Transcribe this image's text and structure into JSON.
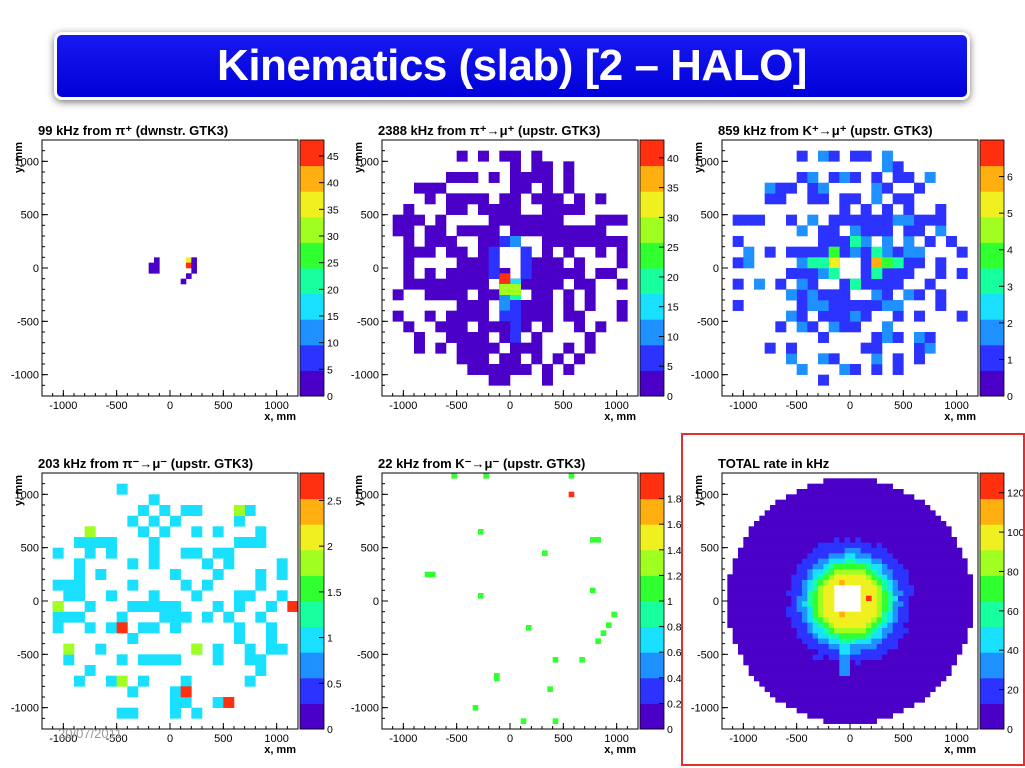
{
  "slide": {
    "title": "Kinematics (slab) [2 – HALO]",
    "date": "20/07/2011"
  },
  "colors": {
    "title_bg": "#0a0ae6",
    "highlight_border": "#e03030",
    "palette": [
      "#4b00c8",
      "#2c33ff",
      "#1f90ff",
      "#19e0ff",
      "#18ffa0",
      "#30ff30",
      "#a0ff20",
      "#f0f020",
      "#ffb010",
      "#ff3010"
    ]
  },
  "chart_data": [
    {
      "type": "heatmap",
      "title": "99 kHz from π⁺ (dwnstr. GTK3)",
      "xlabel": "x, mm",
      "ylabel": "y, mm",
      "xlim": [
        -1200,
        1200
      ],
      "ylim": [
        -1200,
        1200
      ],
      "x_ticks": [
        "-1000",
        "-500",
        "0",
        "500",
        "1000"
      ],
      "y_ticks": [
        "-1000",
        "-500",
        "0",
        "500",
        "1000"
      ],
      "zlim": [
        0,
        48
      ],
      "z_ticks": [
        "0",
        "5",
        "10",
        "15",
        "20",
        "25",
        "30",
        "35",
        "40",
        "45"
      ],
      "bin_size_mm": 50,
      "cells": [
        [
          -200,
          -50,
          4
        ],
        [
          -200,
          0,
          4
        ],
        [
          -150,
          0,
          4
        ],
        [
          -150,
          -50,
          4
        ],
        [
          -150,
          50,
          4
        ],
        [
          150,
          50,
          35
        ],
        [
          150,
          0,
          45
        ],
        [
          200,
          0,
          4
        ],
        [
          200,
          -50,
          4
        ],
        [
          200,
          50,
          4
        ],
        [
          100,
          -150,
          4
        ],
        [
          150,
          -100,
          4
        ]
      ]
    },
    {
      "type": "heatmap",
      "title": "2388 kHz from π⁺→μ⁺ (upstr. GTK3)",
      "xlabel": "x, mm",
      "ylabel": "y, mm",
      "xlim": [
        -1200,
        1200
      ],
      "ylim": [
        -1200,
        1200
      ],
      "x_ticks": [
        "-1000",
        "-500",
        "0",
        "500",
        "1000"
      ],
      "y_ticks": [
        "-1000",
        "-500",
        "0",
        "500",
        "1000"
      ],
      "zlim": [
        0,
        43
      ],
      "z_ticks": [
        "0",
        "5",
        "10",
        "15",
        "20",
        "25",
        "30",
        "35",
        "40"
      ],
      "bin_size_mm": 100,
      "fill": "halo",
      "fill_value": 1,
      "fill_density": 0.55,
      "hole": [
        -150,
        -50,
        50,
        150
      ],
      "cells": [
        [
          -100,
          -200,
          12
        ],
        [
          0,
          -200,
          14
        ],
        [
          -100,
          -300,
          9
        ],
        [
          0,
          -300,
          20
        ],
        [
          -100,
          -400,
          10
        ],
        [
          0,
          -400,
          8
        ],
        [
          -100,
          -500,
          8
        ],
        [
          0,
          -500,
          6
        ],
        [
          0,
          -600,
          6
        ],
        [
          -100,
          -600,
          4
        ],
        [
          -100,
          -150,
          43
        ],
        [
          0,
          -250,
          30
        ],
        [
          -100,
          -250,
          28
        ],
        [
          -200,
          0,
          5
        ],
        [
          100,
          0,
          6
        ],
        [
          100,
          100,
          8
        ],
        [
          -200,
          100,
          7
        ],
        [
          -100,
          200,
          5
        ],
        [
          0,
          200,
          9
        ],
        [
          100,
          -100,
          7
        ],
        [
          -200,
          -100,
          6
        ],
        [
          0,
          -700,
          5
        ],
        [
          0,
          -800,
          4
        ],
        [
          -100,
          -900,
          4
        ]
      ]
    },
    {
      "type": "heatmap",
      "title": "859 kHz from K⁺→μ⁺ (upstr. GTK3)",
      "xlabel": "x, mm",
      "ylabel": "y, mm",
      "xlim": [
        -1200,
        1200
      ],
      "ylim": [
        -1200,
        1200
      ],
      "x_ticks": [
        "-1000",
        "-500",
        "0",
        "500",
        "1000"
      ],
      "y_ticks": [
        "-1000",
        "-500",
        "0",
        "500",
        "1000"
      ],
      "zlim": [
        0,
        7
      ],
      "z_ticks": [
        "0",
        "1",
        "2",
        "3",
        "4",
        "5",
        "6"
      ],
      "bin_size_mm": 100,
      "fill": "halo",
      "fill_value": 1,
      "fill_value_alt": 2,
      "fill_density": 0.45,
      "hole": [
        -100,
        -100,
        100,
        100
      ],
      "cells": [
        [
          -200,
          0,
          5
        ],
        [
          200,
          0,
          6
        ],
        [
          -300,
          0,
          3
        ],
        [
          300,
          0,
          4
        ],
        [
          200,
          -100,
          3
        ],
        [
          -200,
          -100,
          3
        ],
        [
          -400,
          0,
          3
        ],
        [
          400,
          0,
          3
        ],
        [
          -200,
          100,
          4
        ],
        [
          200,
          100,
          3
        ],
        [
          -500,
          -200,
          2
        ],
        [
          500,
          100,
          2
        ],
        [
          -600,
          -300,
          2
        ],
        [
          0,
          200,
          3
        ],
        [
          0,
          -200,
          3
        ]
      ]
    },
    {
      "type": "heatmap",
      "title": "203 kHz from π⁻→μ⁻ (upstr. GTK3)",
      "xlabel": "x, mm",
      "ylabel": "y, mm",
      "xlim": [
        -1200,
        1200
      ],
      "ylim": [
        -1200,
        1200
      ],
      "x_ticks": [
        "-1000",
        "-500",
        "0",
        "500",
        "1000"
      ],
      "y_ticks": [
        "-1000",
        "-500",
        "0",
        "500",
        "1000"
      ],
      "zlim": [
        0,
        2.8
      ],
      "z_ticks": [
        "0",
        "0.5",
        "1",
        "1.5",
        "2",
        "2.5"
      ],
      "bin_size_mm": 100,
      "fill": "uniform",
      "fill_value": 1,
      "fill_density": 0.28,
      "cells": [
        [
          -500,
          -300,
          2.8
        ],
        [
          100,
          -900,
          2.8
        ],
        [
          500,
          -1000,
          2.8
        ],
        [
          1100,
          -100,
          2.8
        ],
        [
          600,
          800,
          1.8
        ],
        [
          -800,
          600,
          1.8
        ],
        [
          -500,
          -800,
          1.8
        ],
        [
          -1100,
          -100,
          1.8
        ],
        [
          -1000,
          -500,
          1.8
        ],
        [
          200,
          -500,
          1.8
        ]
      ]
    },
    {
      "type": "heatmap",
      "title": "22 kHz from K⁻→μ⁻ (upstr. GTK3)",
      "xlabel": "x, mm",
      "ylabel": "y, mm",
      "xlim": [
        -1200,
        1200
      ],
      "ylim": [
        -1200,
        1200
      ],
      "x_ticks": [
        "-1000",
        "-500",
        "0",
        "500",
        "1000"
      ],
      "y_ticks": [
        "-1000",
        "-500",
        "0",
        "500",
        "1000"
      ],
      "zlim": [
        0,
        2
      ],
      "z_ticks": [
        "0",
        "0.2",
        "0.4",
        "0.6",
        "0.8",
        "1",
        "1.2",
        "1.4",
        "1.6",
        "1.8"
      ],
      "bin_size_mm": 50,
      "cells": [
        [
          -550,
          1150,
          1
        ],
        [
          -250,
          1150,
          1
        ],
        [
          550,
          1150,
          1
        ],
        [
          550,
          975,
          1.9
        ],
        [
          -300,
          625,
          1
        ],
        [
          800,
          550,
          1
        ],
        [
          750,
          550,
          1
        ],
        [
          300,
          425,
          1
        ],
        [
          -800,
          225,
          1
        ],
        [
          -750,
          225,
          1
        ],
        [
          -300,
          25,
          1
        ],
        [
          750,
          75,
          1
        ],
        [
          950,
          -150,
          1
        ],
        [
          900,
          -250,
          1
        ],
        [
          150,
          -275,
          1
        ],
        [
          850,
          -325,
          1
        ],
        [
          800,
          -400,
          1
        ],
        [
          650,
          -575,
          1
        ],
        [
          400,
          -575,
          1
        ],
        [
          -150,
          -750,
          1
        ],
        [
          -150,
          -725,
          1
        ],
        [
          350,
          -850,
          1
        ],
        [
          -350,
          -1025,
          1
        ],
        [
          100,
          -1150,
          1
        ],
        [
          400,
          -1150,
          1
        ]
      ]
    },
    {
      "type": "heatmap",
      "title": "TOTAL rate in kHz",
      "xlabel": "x, mm",
      "ylabel": "y, mm",
      "xlim": [
        -1200,
        1200
      ],
      "ylim": [
        -1200,
        1200
      ],
      "x_ticks": [
        "-1000",
        "-500",
        "0",
        "500",
        "1000"
      ],
      "y_ticks": [
        "-1000",
        "-500",
        "0",
        "500",
        "1000"
      ],
      "zlim": [
        0,
        130
      ],
      "z_ticks": [
        "0",
        "20",
        "40",
        "60",
        "80",
        "100",
        "120"
      ],
      "bin_size_mm": 50,
      "fill": "total",
      "hole": [
        -150,
        -100,
        100,
        150
      ],
      "cells": [
        [
          150,
          0,
          125
        ],
        [
          -100,
          -150,
          110
        ],
        [
          150,
          -50,
          95
        ]
      ]
    }
  ]
}
